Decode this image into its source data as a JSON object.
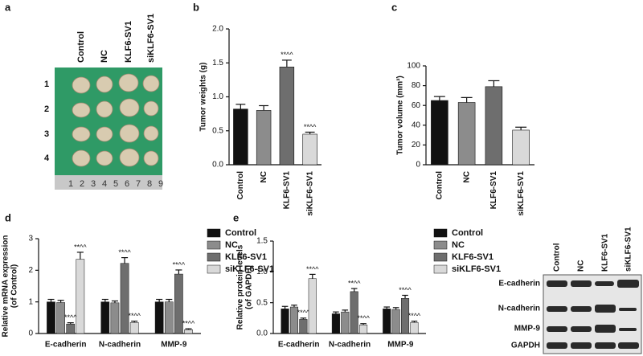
{
  "panel_labels": [
    "a",
    "b",
    "c",
    "d",
    "e"
  ],
  "photo": {
    "column_labels": [
      "Control",
      "NC",
      "KLF6-SV1",
      "siKLF6-SV1"
    ],
    "row_labels": [
      "1",
      "2",
      "3",
      "4"
    ],
    "ruler_labels": [
      "1",
      "2",
      "3",
      "4",
      "5",
      "6",
      "7",
      "8",
      "9"
    ]
  },
  "blot": {
    "column_labels": [
      "Control",
      "NC",
      "KLF6-SV1",
      "siKLF6-SV1"
    ],
    "row_labels": [
      "E-cadherin",
      "N-cadherin",
      "MMP-9",
      "GAPDH"
    ]
  },
  "chart_data": [
    {
      "type": "bar",
      "ylabel": [
        "Tumor weights (g)"
      ],
      "categories": [
        "Control",
        "NC",
        "KLF6-SV1",
        "siKLF6-SV1"
      ],
      "values": [
        0.82,
        0.8,
        1.44,
        0.45
      ],
      "errors": [
        0.07,
        0.07,
        0.1,
        0.03
      ],
      "colors": [
        "#111111",
        "#8c8c8c",
        "#6e6e6e",
        "#d9d9d9"
      ],
      "significance": [
        null,
        null,
        "**^^",
        "**^^"
      ],
      "ylim": [
        0,
        2
      ],
      "yticks": [
        {
          "value": 0,
          "label": "0.0"
        },
        {
          "value": 0.5,
          "label": "0.5"
        },
        {
          "value": 1,
          "label": "1.0"
        },
        {
          "value": 1.5,
          "label": "1.5"
        },
        {
          "value": 2,
          "label": "2.0"
        }
      ]
    },
    {
      "type": "bar",
      "ylabel": [
        "Tumor volume (mm³)"
      ],
      "categories": [
        "Control",
        "NC",
        "KLF6-SV1",
        "siKLF6-SV1"
      ],
      "values": [
        65,
        63,
        79,
        35
      ],
      "errors": [
        4,
        5,
        6,
        3
      ],
      "colors": [
        "#111111",
        "#8c8c8c",
        "#6e6e6e",
        "#d9d9d9"
      ],
      "significance": [
        null,
        null,
        null,
        null
      ],
      "ylim": [
        0,
        100
      ],
      "yticks": [
        0,
        20,
        40,
        60,
        80,
        100
      ]
    },
    {
      "type": "grouped_bar",
      "ylabel": [
        "Relative mRNA expression",
        "(of Control)"
      ],
      "categories": [
        "E-cadherin",
        "N-cadherin",
        "MMP-9"
      ],
      "series": [
        {
          "name": "Control",
          "color": "#111111",
          "values": [
            1,
            1,
            1
          ],
          "errors": [
            0.08,
            0.08,
            0.08
          ],
          "significance": [
            null,
            null,
            null
          ]
        },
        {
          "name": "NC",
          "color": "#8c8c8c",
          "values": [
            0.98,
            0.97,
            1.0
          ],
          "errors": [
            0.07,
            0.06,
            0.08
          ],
          "significance": [
            null,
            null,
            null
          ]
        },
        {
          "name": "KLF6-SV1",
          "color": "#6e6e6e",
          "values": [
            0.3,
            2.22,
            1.88
          ],
          "errors": [
            0.04,
            0.18,
            0.13
          ],
          "significance": [
            "**^^",
            "**^^",
            "**^^"
          ]
        },
        {
          "name": "siKLF6-SV1",
          "color": "#d9d9d9",
          "values": [
            2.35,
            0.35,
            0.12
          ],
          "errors": [
            0.22,
            0.04,
            0.03
          ],
          "significance": [
            "**^^",
            "**^^",
            "**^^"
          ]
        }
      ],
      "ylim": [
        0,
        3
      ],
      "yticks": [
        0,
        1,
        2,
        3
      ]
    },
    {
      "type": "grouped_bar",
      "ylabel": [
        "Relative protein levels",
        "(of GAPDH)"
      ],
      "categories": [
        "E-cadherin",
        "N-cadherin",
        "MMP-9"
      ],
      "series": [
        {
          "name": "Control",
          "color": "#111111",
          "values": [
            0.4,
            0.32,
            0.4
          ],
          "errors": [
            0.04,
            0.03,
            0.03
          ],
          "significance": [
            null,
            null,
            null
          ]
        },
        {
          "name": "NC",
          "color": "#8c8c8c",
          "values": [
            0.43,
            0.35,
            0.39
          ],
          "errors": [
            0.03,
            0.03,
            0.03
          ],
          "significance": [
            null,
            null,
            null
          ]
        },
        {
          "name": "KLF6-SV1",
          "color": "#6e6e6e",
          "values": [
            0.23,
            0.68,
            0.57
          ],
          "errors": [
            0.02,
            0.05,
            0.05
          ],
          "significance": [
            "**^^",
            "**^^",
            "**^^"
          ]
        },
        {
          "name": "siKLF6-SV1",
          "color": "#d9d9d9",
          "values": [
            0.89,
            0.14,
            0.18
          ],
          "errors": [
            0.07,
            0.02,
            0.02
          ],
          "significance": [
            "**^^",
            "**^^",
            "**^^"
          ]
        }
      ],
      "ylim": [
        0,
        1.5
      ],
      "yticks": [
        {
          "value": 0,
          "label": "0.0"
        },
        {
          "value": 0.5,
          "label": "0.5"
        },
        {
          "value": 1,
          "label": "1.0"
        },
        {
          "value": 1.5,
          "label": "1.5"
        }
      ]
    }
  ]
}
